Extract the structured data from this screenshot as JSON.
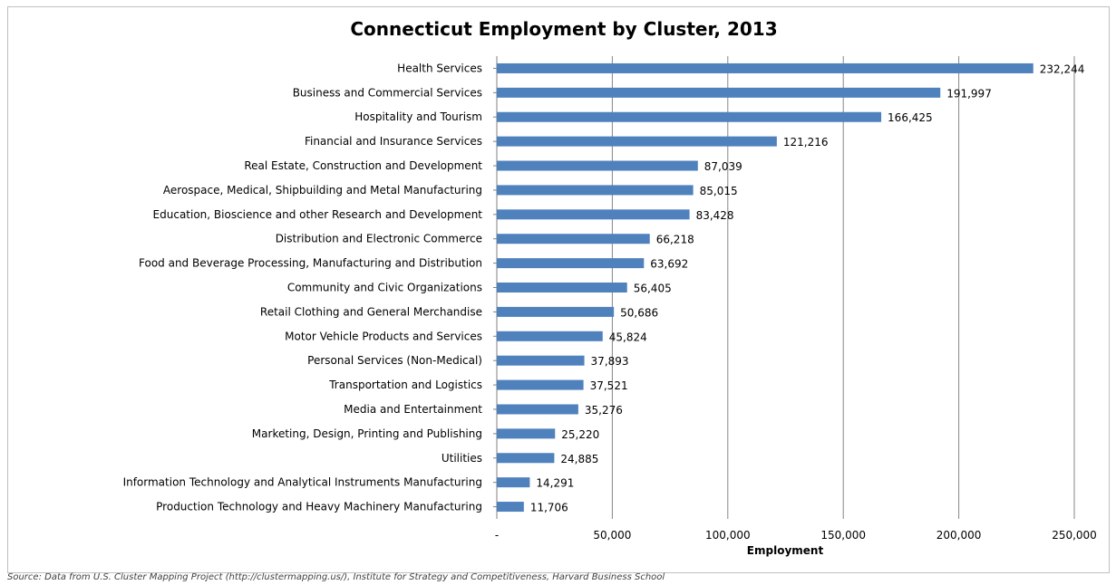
{
  "chart_data": {
    "type": "bar",
    "orientation": "horizontal",
    "title": "Connecticut Employment by Cluster, 2013",
    "xlabel": "Employment",
    "ylabel": "",
    "xlim": [
      0,
      250000
    ],
    "x_ticks": [
      "-",
      "50,000",
      "100,000",
      "150,000",
      "200,000",
      "250,000"
    ],
    "grid": true,
    "bar_color": "#4f81bd",
    "categories": [
      "Health Services",
      "Business and Commercial Services",
      "Hospitality and Tourism",
      "Financial and Insurance Services",
      "Real Estate, Construction and Development",
      "Aerospace, Medical, Shipbuilding and Metal Manufacturing",
      "Education, Bioscience and other Research and Development",
      "Distribution and Electronic Commerce",
      "Food and Beverage Processing, Manufacturing and Distribution",
      "Community and Civic Organizations",
      "Retail Clothing and General Merchandise",
      "Motor Vehicle Products and Services",
      "Personal Services (Non-Medical)",
      "Transportation and Logistics",
      "Media and Entertainment",
      "Marketing, Design, Printing and Publishing",
      "Utilities",
      "Information Technology and Analytical Instruments Manufacturing",
      "Production Technology and Heavy Machinery Manufacturing"
    ],
    "values": [
      232244,
      191997,
      166425,
      121216,
      87039,
      85015,
      83428,
      66218,
      63692,
      56405,
      50686,
      45824,
      37893,
      37521,
      35276,
      25220,
      24885,
      14291,
      11706
    ],
    "value_labels": [
      "232,244",
      "191,997",
      "166,425",
      "121,216",
      "87,039",
      "85,015",
      "83,428",
      "66,218",
      "63,692",
      "56,405",
      "50,686",
      "45,824",
      "37,893",
      "37,521",
      "35,276",
      "25,220",
      "24,885",
      "14,291",
      "11,706"
    ]
  },
  "source_note": "Source: Data from U.S. Cluster Mapping Project (http://clustermapping.us/), Institute for Strategy and Competitiveness, Harvard Business School"
}
